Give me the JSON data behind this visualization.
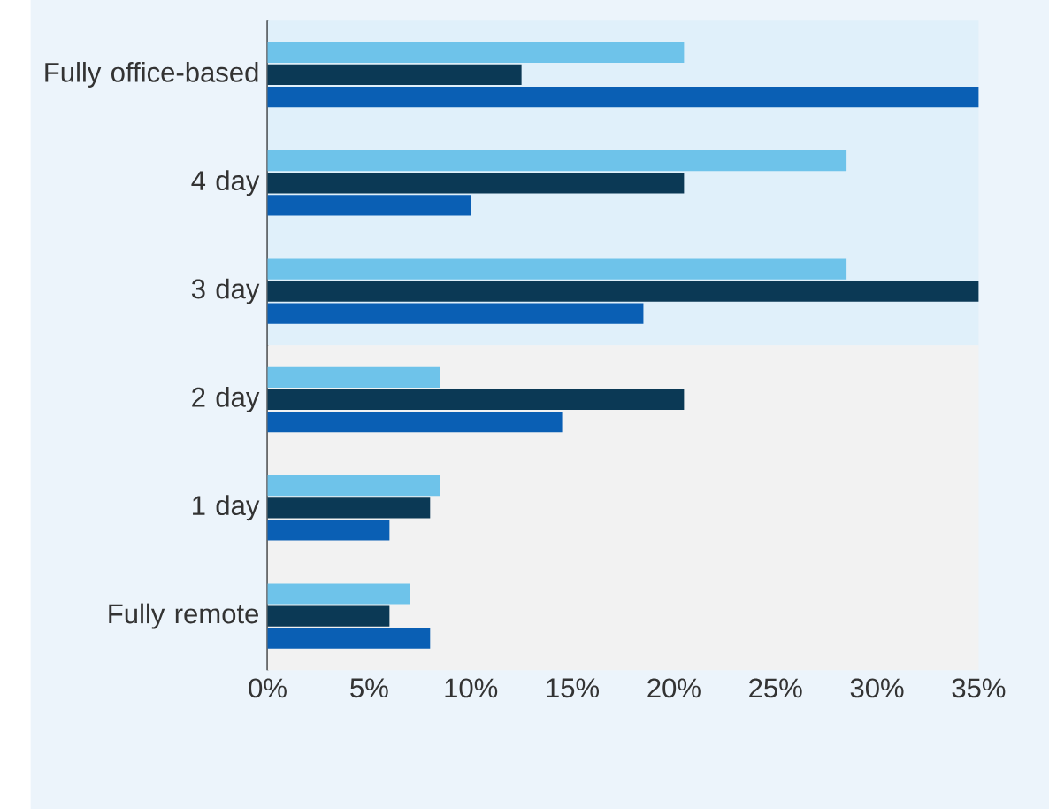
{
  "chart_data": {
    "type": "bar",
    "orientation": "horizontal",
    "categories": [
      "Fully office-based",
      "4 day",
      "3 day",
      "2 day",
      "1 day",
      "Fully remote"
    ],
    "series": [
      {
        "color": "#6ec3ea",
        "values": [
          20.5,
          28.5,
          28.5,
          8.5,
          8.5,
          7
        ]
      },
      {
        "color": "#0b3955",
        "values": [
          12.5,
          20.5,
          35,
          20.5,
          8,
          6
        ]
      },
      {
        "color": "#0a5fb4",
        "values": [
          35,
          10,
          18.5,
          14.5,
          6,
          8
        ]
      }
    ],
    "xlim": [
      0,
      35
    ],
    "xticks": [
      {
        "value": 0,
        "label": "0%"
      },
      {
        "value": 5,
        "label": "5%"
      },
      {
        "value": 10,
        "label": "10%"
      },
      {
        "value": 15,
        "label": "15%"
      },
      {
        "value": 20,
        "label": "20%"
      },
      {
        "value": 25,
        "label": "25%"
      },
      {
        "value": 30,
        "label": "30%"
      },
      {
        "value": 35,
        "label": "35%"
      }
    ],
    "bands": [
      {
        "axis": "y",
        "from": "Fully office-based",
        "to": "3 day",
        "color": "#e0f0fa"
      },
      {
        "axis": "y",
        "from": "2 day",
        "to": "Fully remote",
        "color": "#f2f2f2"
      }
    ]
  }
}
